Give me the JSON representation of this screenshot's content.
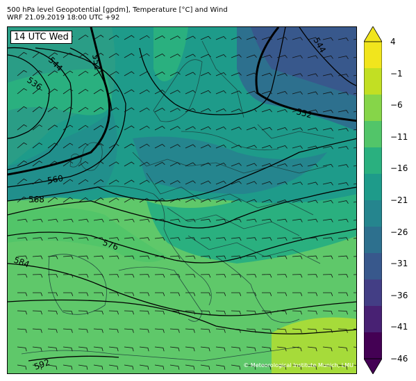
{
  "header": {
    "title_line1": "500 hPa level Geopotential [gpdm], Temperature [°C] and Wind",
    "title_line2": "WRF 21.09.2019 18:00 UTC +92"
  },
  "map": {
    "time_label": "14 UTC Wed",
    "credit": "© Meteorological Institute Munich, LMU",
    "contour_labels": [
      "536",
      "544",
      "552",
      "560",
      "568",
      "576",
      "584",
      "592",
      "544",
      "552"
    ]
  },
  "colorbar": {
    "ticks": [
      "4",
      "−1",
      "−6",
      "−11",
      "−16",
      "−21",
      "−26",
      "−31",
      "−36",
      "−41",
      "−46"
    ],
    "colors": [
      "#f1e51d",
      "#c2df23",
      "#86d549",
      "#52c569",
      "#2ab07f",
      "#1e9b8a",
      "#25858e",
      "#2d708e",
      "#38588c",
      "#433e85",
      "#482173",
      "#440154"
    ]
  }
}
